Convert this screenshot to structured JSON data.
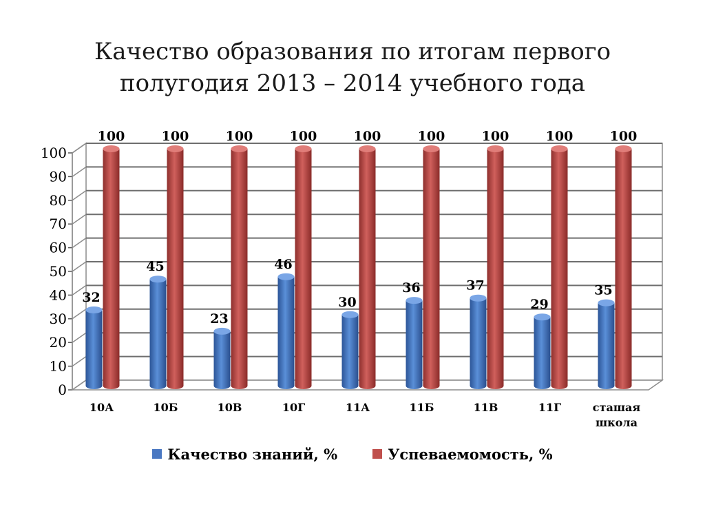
{
  "slide": {
    "title_line1": "Качество образования по итогам первого",
    "title_line2": "полугодия 2013 – 2014 учебного года"
  },
  "chart_data": {
    "type": "bar",
    "title": "Качество образования по итогам первого полугодия 2013 – 2014 учебного года",
    "categories": [
      "10А",
      "10Б",
      "10В",
      "10Г",
      "11А",
      "11Б",
      "11В",
      "11Г",
      "сташая школа"
    ],
    "series": [
      {
        "name": "Качество знаний, %",
        "color": "#4a78c2",
        "values": [
          32,
          45,
          23,
          46,
          30,
          36,
          37,
          29,
          35
        ]
      },
      {
        "name": "Успеваемомость, %",
        "color": "#c0504d",
        "values": [
          100,
          100,
          100,
          100,
          100,
          100,
          100,
          100,
          100
        ]
      }
    ],
    "ylim": [
      0,
      100
    ],
    "yticks": [
      0,
      10,
      20,
      30,
      40,
      50,
      60,
      70,
      80,
      90,
      100
    ],
    "grid": true,
    "legend_position": "bottom",
    "data_labels": true,
    "style": "3d-cylinder"
  }
}
